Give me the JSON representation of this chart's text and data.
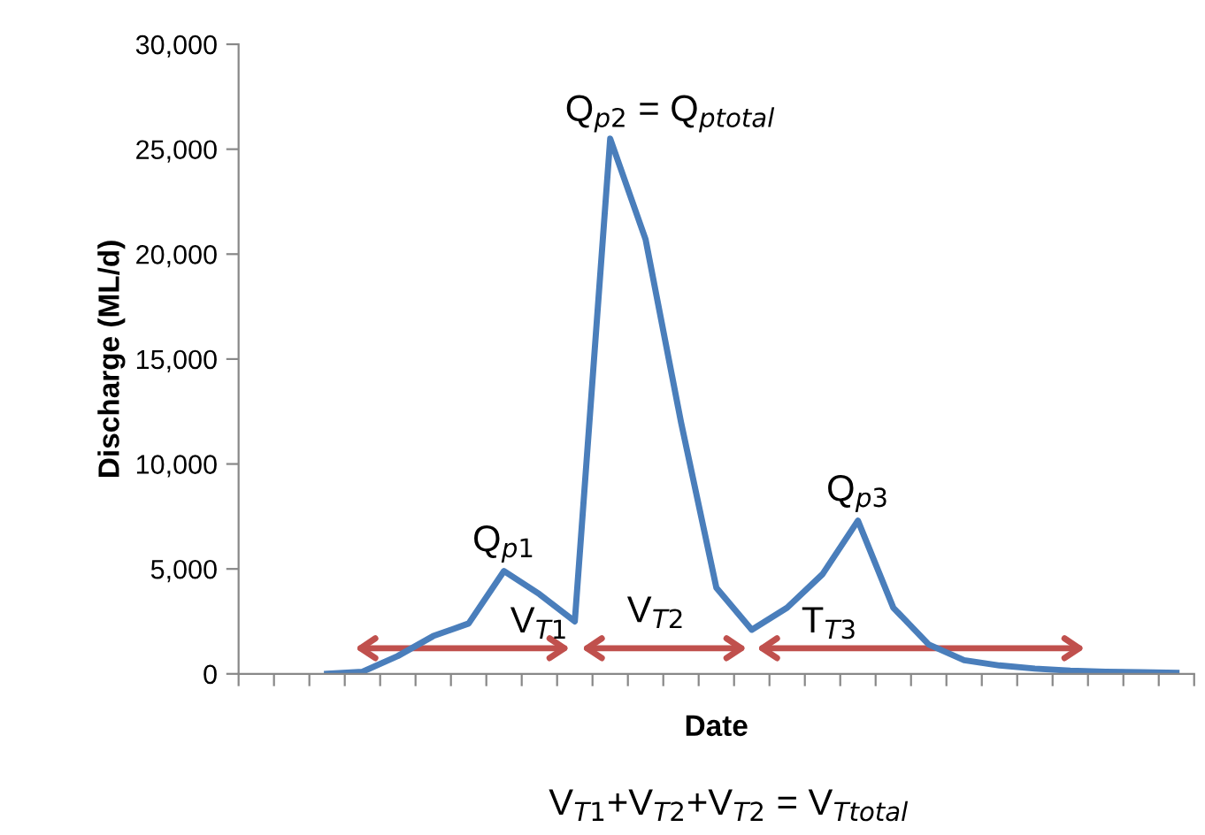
{
  "chart_data": {
    "type": "line",
    "xlabel": "Date",
    "ylabel": "Discharge (ML/d)",
    "categories": [
      null,
      null,
      null,
      null,
      null,
      null,
      null,
      null,
      null,
      null,
      null,
      null,
      null,
      null,
      null,
      null,
      null,
      null,
      null,
      null,
      null,
      null,
      null,
      null,
      null,
      null,
      null
    ],
    "series": [
      {
        "color": "#4a7ebb",
        "values": [
          null,
          null,
          0,
          100,
          850,
          1800,
          2400,
          4900,
          3800,
          2500,
          25500,
          20700,
          12000,
          4100,
          2100,
          3150,
          4750,
          7300,
          3150,
          1400,
          650,
          400,
          250,
          150,
          100,
          80,
          50
        ]
      }
    ],
    "ylim": [
      0,
      30000
    ],
    "yticks": [
      0,
      {
        "value": 5000,
        "label": "5,000"
      },
      {
        "value": 10000,
        "label": "10,000"
      },
      {
        "value": 15000,
        "label": "15,000"
      },
      {
        "value": 20000,
        "label": "20,000"
      },
      {
        "value": 25000,
        "label": "25,000"
      },
      {
        "value": 30000,
        "label": "30,000"
      }
    ],
    "grid": false,
    "legend": false,
    "marker": "none",
    "line_style": "solid",
    "annotations": [
      "Q$_{p1}$",
      "Q$_{p2}$ = Q$_{ptotal}$",
      "Q$_{p3}$",
      "V$_{T1}$",
      "V$_{T2}$",
      "T$_{T3}$",
      "V$_{T1}$+V$_{T2}$+V$_{T2}$ = V$_{Ttotal}$"
    ]
  }
}
